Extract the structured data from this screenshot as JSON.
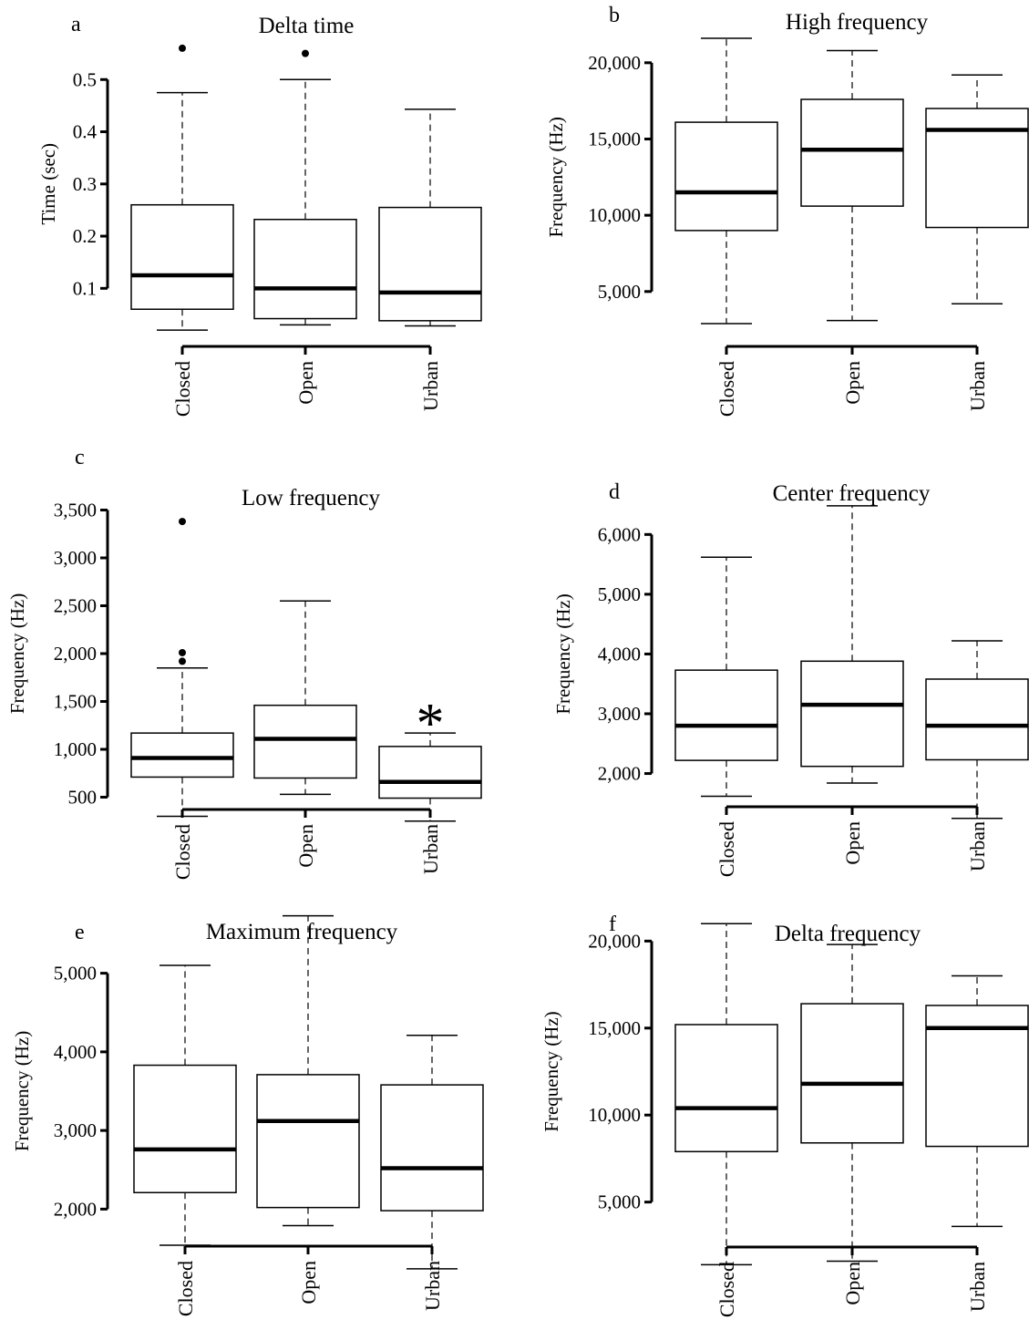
{
  "figure": {
    "description": ""
  },
  "chart_data": [
    {
      "panel": "a",
      "type": "box",
      "title": "Delta time",
      "xlabel": "",
      "ylabel": "Time (sec)",
      "categories": [
        "Closed",
        "Open",
        "Urban"
      ],
      "yticks": [
        0.1,
        0.2,
        0.3,
        0.4,
        0.5
      ],
      "ytick_labels": [
        "0.1",
        "0.2",
        "0.3",
        "0.4",
        "0.5"
      ],
      "ylim": [
        0.015,
        0.6
      ],
      "boxes": [
        {
          "category": "Closed",
          "whisker_low": 0.02,
          "q1": 0.06,
          "median": 0.125,
          "q3": 0.26,
          "whisker_high": 0.475,
          "outliers": [
            0.56
          ]
        },
        {
          "category": "Open",
          "whisker_low": 0.03,
          "q1": 0.042,
          "median": 0.1,
          "q3": 0.232,
          "whisker_high": 0.5,
          "outliers": [
            0.55
          ]
        },
        {
          "category": "Urban",
          "whisker_low": 0.028,
          "q1": 0.038,
          "median": 0.092,
          "q3": 0.255,
          "whisker_high": 0.443,
          "outliers": []
        }
      ],
      "annotations": []
    },
    {
      "panel": "b",
      "type": "box",
      "title": "High frequency",
      "xlabel": "",
      "ylabel": "Frequency (Hz)",
      "categories": [
        "Closed",
        "Open",
        "Urban"
      ],
      "yticks": [
        5000,
        10000,
        15000,
        20000
      ],
      "ytick_labels": [
        "5,000",
        "10,000",
        "15,000",
        "20,000"
      ],
      "ylim": [
        2000,
        22500
      ],
      "boxes": [
        {
          "category": "Closed",
          "whisker_low": 2900,
          "q1": 9000,
          "median": 11500,
          "q3": 16100,
          "whisker_high": 21600,
          "outliers": []
        },
        {
          "category": "Open",
          "whisker_low": 3100,
          "q1": 10600,
          "median": 14300,
          "q3": 17600,
          "whisker_high": 20800,
          "outliers": []
        },
        {
          "category": "Urban",
          "whisker_low": 4200,
          "q1": 9200,
          "median": 15600,
          "q3": 17000,
          "whisker_high": 19200,
          "outliers": []
        }
      ],
      "annotations": []
    },
    {
      "panel": "c",
      "type": "box",
      "title": "Low frequency",
      "xlabel": "",
      "ylabel": "Frequency (Hz)",
      "categories": [
        "Closed",
        "Open",
        "Urban"
      ],
      "yticks": [
        500,
        1000,
        1500,
        2000,
        2500,
        3000,
        3500
      ],
      "ytick_labels": [
        "500",
        "1,000",
        "1,500",
        "2,000",
        "2,500",
        "3,000",
        "3,500"
      ],
      "ylim": [
        200,
        3600
      ],
      "boxes": [
        {
          "category": "Closed",
          "whisker_low": 300,
          "q1": 710,
          "median": 910,
          "q3": 1170,
          "whisker_high": 1850,
          "outliers": [
            1920,
            2010,
            3380
          ]
        },
        {
          "category": "Open",
          "whisker_low": 530,
          "q1": 700,
          "median": 1110,
          "q3": 1460,
          "whisker_high": 2550,
          "outliers": []
        },
        {
          "category": "Urban",
          "whisker_low": 250,
          "q1": 490,
          "median": 660,
          "q3": 1030,
          "whisker_high": 1170,
          "outliers": []
        }
      ],
      "annotations": [
        {
          "category": "Urban",
          "text": "*"
        }
      ]
    },
    {
      "panel": "d",
      "type": "box",
      "title": "Center frequency",
      "xlabel": "",
      "ylabel": "Frequency (Hz)",
      "categories": [
        "Closed",
        "Open",
        "Urban"
      ],
      "yticks": [
        2000,
        3000,
        4000,
        5000,
        6000
      ],
      "ytick_labels": [
        "2,000",
        "3,000",
        "4,000",
        "5,000",
        "6,000"
      ],
      "ylim": [
        1200,
        6600
      ],
      "boxes": [
        {
          "category": "Closed",
          "whisker_low": 1620,
          "q1": 2220,
          "median": 2800,
          "q3": 3730,
          "whisker_high": 5620,
          "outliers": []
        },
        {
          "category": "Open",
          "whisker_low": 1840,
          "q1": 2120,
          "median": 3150,
          "q3": 3880,
          "whisker_high": 6480,
          "outliers": []
        },
        {
          "category": "Urban",
          "whisker_low": 1250,
          "q1": 2230,
          "median": 2800,
          "q3": 3580,
          "whisker_high": 4220,
          "outliers": []
        }
      ],
      "annotations": []
    },
    {
      "panel": "e",
      "type": "box",
      "title": "Maximum frequency",
      "xlabel": "",
      "ylabel": "Frequency (Hz)",
      "categories": [
        "Closed",
        "Open",
        "Urban"
      ],
      "yticks": [
        2000,
        3000,
        4000,
        5000
      ],
      "ytick_labels": [
        "2,000",
        "3,000",
        "4,000",
        "5,000"
      ],
      "ylim": [
        1100,
        5900
      ],
      "boxes": [
        {
          "category": "Closed",
          "whisker_low": 1540,
          "q1": 2210,
          "median": 2760,
          "q3": 3830,
          "whisker_high": 5100,
          "outliers": []
        },
        {
          "category": "Open",
          "whisker_low": 1790,
          "q1": 2020,
          "median": 3120,
          "q3": 3710,
          "whisker_high": 5730,
          "outliers": []
        },
        {
          "category": "Urban",
          "whisker_low": 1240,
          "q1": 1980,
          "median": 2520,
          "q3": 3580,
          "whisker_high": 4210,
          "outliers": []
        }
      ],
      "annotations": []
    },
    {
      "panel": "f",
      "type": "box",
      "title": "Delta frequency",
      "xlabel": "",
      "ylabel": "Frequency (Hz)",
      "categories": [
        "Closed",
        "Open",
        "Urban"
      ],
      "yticks": [
        5000,
        10000,
        15000,
        20000
      ],
      "ytick_labels": [
        "5,000",
        "10,000",
        "15,000",
        "20,000"
      ],
      "ylim": [
        1000,
        21800
      ],
      "boxes": [
        {
          "category": "Closed",
          "whisker_low": 1400,
          "q1": 7900,
          "median": 10400,
          "q3": 15200,
          "whisker_high": 21000,
          "outliers": []
        },
        {
          "category": "Open",
          "whisker_low": 1600,
          "q1": 8400,
          "median": 11800,
          "q3": 16400,
          "whisker_high": 19800,
          "outliers": []
        },
        {
          "category": "Urban",
          "whisker_low": 3600,
          "q1": 8200,
          "median": 15000,
          "q3": 16300,
          "whisker_high": 18000,
          "outliers": []
        }
      ],
      "annotations": []
    }
  ]
}
